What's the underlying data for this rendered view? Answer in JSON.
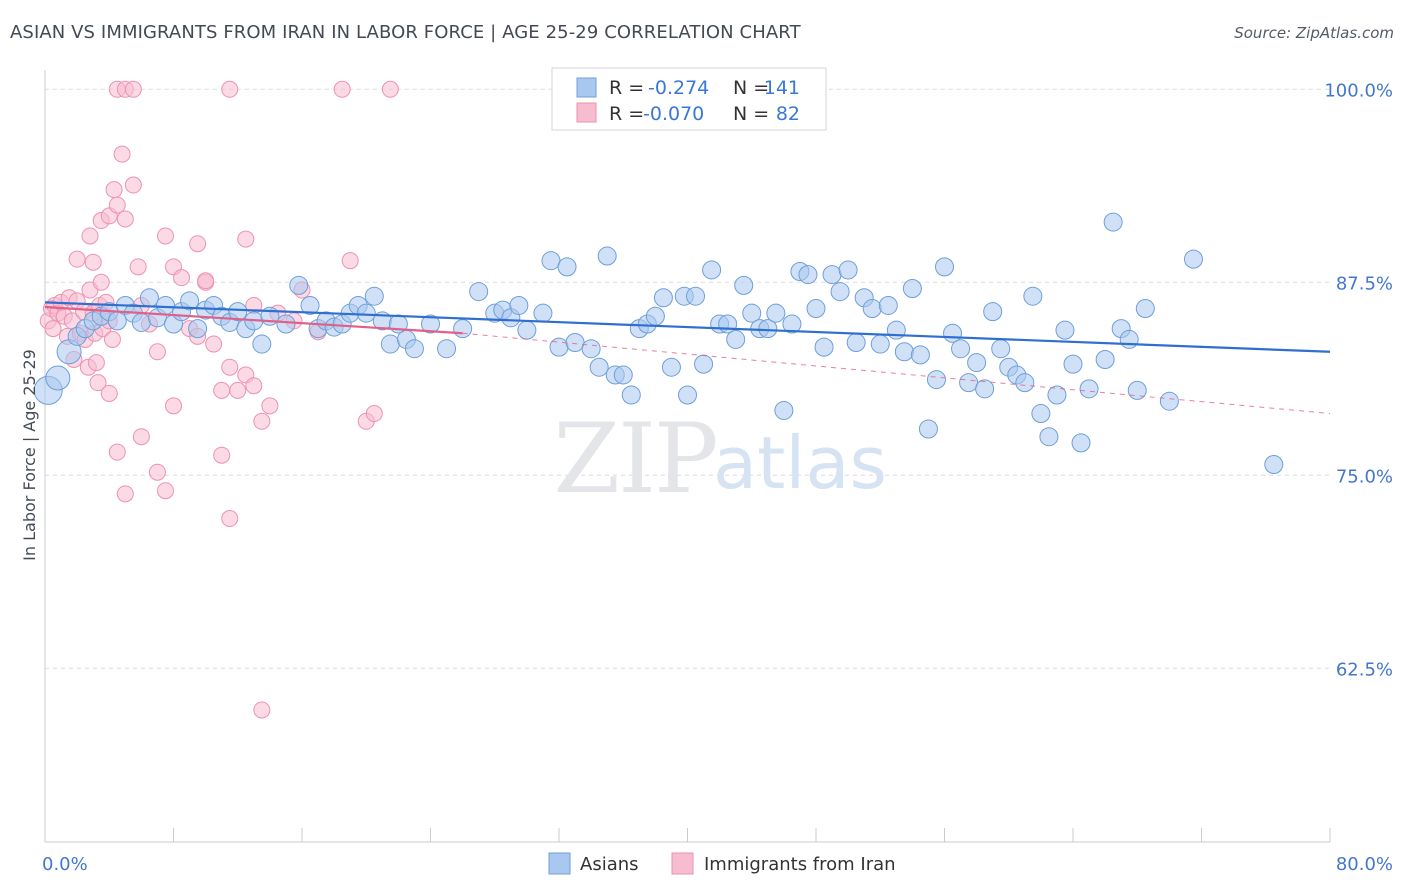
{
  "title": "ASIAN VS IMMIGRANTS FROM IRAN IN LABOR FORCE | AGE 25-29 CORRELATION CHART",
  "source": "Source: ZipAtlas.com",
  "watermark": {
    "zip": "ZIP",
    "atlas": "atlas"
  },
  "colors": {
    "asians_fill": "#a9c8f0",
    "asians_stroke": "#6e9fd8",
    "asians_line": "#2f6fd0",
    "iran_fill": "#f7bcd0",
    "iran_stroke": "#ee92b0",
    "iran_line": "#e0608a",
    "tick_label": "#4477cc",
    "grid": "#d8dce3"
  },
  "stats_box": {
    "rows": [
      {
        "r_label": "R =",
        "r_value": "-0.274",
        "n_label": "N =",
        "n_value": "141",
        "series": "asians"
      },
      {
        "r_label": "R =",
        "r_value": "-0.070",
        "n_label": "N =",
        "n_value": "82",
        "series": "iran"
      }
    ]
  },
  "chart_data": {
    "type": "scatter",
    "title": "ASIAN VS IMMIGRANTS FROM IRAN IN LABOR FORCE | AGE 25-29 CORRELATION CHART",
    "xlabel": "",
    "ylabel": "In Labor Force | Age 25-29",
    "xlim": [
      0,
      80
    ],
    "ylim": [
      51.25,
      101.25
    ],
    "x_tick_labels": [
      {
        "v": 0,
        "label": "0.0%"
      },
      {
        "v": 80,
        "label": "80.0%"
      }
    ],
    "y_tick_labels": [
      {
        "v": 100,
        "label": "100.0%"
      },
      {
        "v": 87.5,
        "label": "87.5%"
      },
      {
        "v": 75,
        "label": "75.0%"
      },
      {
        "v": 62.5,
        "label": "62.5%"
      }
    ],
    "grid": true,
    "legend_position": "bottom-center",
    "series": [
      {
        "name": "Asians",
        "trend": {
          "x": [
            0,
            80
          ],
          "y": [
            86.2,
            83.0
          ],
          "style": "solid"
        },
        "points": [
          [
            0.2,
            80.5
          ],
          [
            0.8,
            81.3
          ],
          [
            1.5,
            83.0
          ],
          [
            2.0,
            84.0
          ],
          [
            2.5,
            84.5
          ],
          [
            3.0,
            85.0
          ],
          [
            3.5,
            85.3
          ],
          [
            4.0,
            85.6
          ],
          [
            4.5,
            85.0
          ],
          [
            5.0,
            86.0
          ],
          [
            5.5,
            85.5
          ],
          [
            6.0,
            84.9
          ],
          [
            6.5,
            86.5
          ],
          [
            7.0,
            85.2
          ],
          [
            7.5,
            86.0
          ],
          [
            8.0,
            84.8
          ],
          [
            8.5,
            85.6
          ],
          [
            9.0,
            86.3
          ],
          [
            9.5,
            84.5
          ],
          [
            10.0,
            85.7
          ],
          [
            10.5,
            86.0
          ],
          [
            11.0,
            85.3
          ],
          [
            11.5,
            84.9
          ],
          [
            12.0,
            85.6
          ],
          [
            12.5,
            84.5
          ],
          [
            13.0,
            85.0
          ],
          [
            13.5,
            83.5
          ],
          [
            14.0,
            85.3
          ],
          [
            15.0,
            84.8
          ],
          [
            15.8,
            87.3
          ],
          [
            16.5,
            86.0
          ],
          [
            17.0,
            84.5
          ],
          [
            17.5,
            85.0
          ],
          [
            18.0,
            84.6
          ],
          [
            18.5,
            84.8
          ],
          [
            19.0,
            85.5
          ],
          [
            19.5,
            86.0
          ],
          [
            20.0,
            85.5
          ],
          [
            20.5,
            86.6
          ],
          [
            21.0,
            85.0
          ],
          [
            21.5,
            83.5
          ],
          [
            22.0,
            84.8
          ],
          [
            22.5,
            83.8
          ],
          [
            23.0,
            83.2
          ],
          [
            24.0,
            84.8
          ],
          [
            25.0,
            83.2
          ],
          [
            26.0,
            84.5
          ],
          [
            27.0,
            86.9
          ],
          [
            28.0,
            85.5
          ],
          [
            28.5,
            85.7
          ],
          [
            29.0,
            85.2
          ],
          [
            29.5,
            86.0
          ],
          [
            30.0,
            84.4
          ],
          [
            31.0,
            85.5
          ],
          [
            31.5,
            88.9
          ],
          [
            32.0,
            83.3
          ],
          [
            32.5,
            88.5
          ],
          [
            33.0,
            83.6
          ],
          [
            34.0,
            83.2
          ],
          [
            34.5,
            82.0
          ],
          [
            35.0,
            89.2
          ],
          [
            35.5,
            81.5
          ],
          [
            36.0,
            81.5
          ],
          [
            36.5,
            80.2
          ],
          [
            37.0,
            84.5
          ],
          [
            37.5,
            84.8
          ],
          [
            38.0,
            85.3
          ],
          [
            38.5,
            86.5
          ],
          [
            39.0,
            82.0
          ],
          [
            39.8,
            86.6
          ],
          [
            40.0,
            80.2
          ],
          [
            40.5,
            86.6
          ],
          [
            41.0,
            82.2
          ],
          [
            41.5,
            88.3
          ],
          [
            42.0,
            84.8
          ],
          [
            42.5,
            84.8
          ],
          [
            43.0,
            83.8
          ],
          [
            43.5,
            87.3
          ],
          [
            44.0,
            85.5
          ],
          [
            44.5,
            84.5
          ],
          [
            45.0,
            84.5
          ],
          [
            45.5,
            85.5
          ],
          [
            46.0,
            79.2
          ],
          [
            46.5,
            84.8
          ],
          [
            47.0,
            88.2
          ],
          [
            47.5,
            88.0
          ],
          [
            48.0,
            85.8
          ],
          [
            48.5,
            83.3
          ],
          [
            49.0,
            88.0
          ],
          [
            49.5,
            86.9
          ],
          [
            50.0,
            88.3
          ],
          [
            50.5,
            83.6
          ],
          [
            51.0,
            86.5
          ],
          [
            51.5,
            85.8
          ],
          [
            52.0,
            83.5
          ],
          [
            52.5,
            86.0
          ],
          [
            53.0,
            84.4
          ],
          [
            53.5,
            83.0
          ],
          [
            54.0,
            87.1
          ],
          [
            54.5,
            82.8
          ],
          [
            55.0,
            78.0
          ],
          [
            55.5,
            81.2
          ],
          [
            56.0,
            88.5
          ],
          [
            56.5,
            84.2
          ],
          [
            57.0,
            83.2
          ],
          [
            57.5,
            81.0
          ],
          [
            58.0,
            82.3
          ],
          [
            58.5,
            80.6
          ],
          [
            59.0,
            85.6
          ],
          [
            59.5,
            83.2
          ],
          [
            60.0,
            82.0
          ],
          [
            60.5,
            81.5
          ],
          [
            61.0,
            81.0
          ],
          [
            61.5,
            86.6
          ],
          [
            62.0,
            79.0
          ],
          [
            62.5,
            77.5
          ],
          [
            63.0,
            80.2
          ],
          [
            63.5,
            84.4
          ],
          [
            64.0,
            82.2
          ],
          [
            64.5,
            77.1
          ],
          [
            65.0,
            80.6
          ],
          [
            66.0,
            82.5
          ],
          [
            66.5,
            91.4
          ],
          [
            67.0,
            84.5
          ],
          [
            67.5,
            83.8
          ],
          [
            68.0,
            80.5
          ],
          [
            68.5,
            85.8
          ],
          [
            70.0,
            79.8
          ],
          [
            71.5,
            89.0
          ],
          [
            76.5,
            75.7
          ]
        ]
      },
      {
        "name": "Immigrants from Iran",
        "trend": {
          "x": [
            0,
            26
          ],
          "y": [
            85.9,
            84.2
          ],
          "style": "solid",
          "dashed_extension": {
            "x": [
              26,
              80
            ],
            "y": [
              84.2,
              79.0
            ]
          }
        },
        "points": [
          [
            0.2,
            85.0
          ],
          [
            0.4,
            85.8
          ],
          [
            0.5,
            84.5
          ],
          [
            0.6,
            86.0
          ],
          [
            0.8,
            85.5
          ],
          [
            1.0,
            86.2
          ],
          [
            1.2,
            85.3
          ],
          [
            1.4,
            84.0
          ],
          [
            1.5,
            86.5
          ],
          [
            1.7,
            85.0
          ],
          [
            1.8,
            82.5
          ],
          [
            2.0,
            86.3
          ],
          [
            2.2,
            84.2
          ],
          [
            2.4,
            85.6
          ],
          [
            2.5,
            83.8
          ],
          [
            2.7,
            82.0
          ],
          [
            2.8,
            87.0
          ],
          [
            3.0,
            85.5
          ],
          [
            3.1,
            84.2
          ],
          [
            3.2,
            82.3
          ],
          [
            3.3,
            81.0
          ],
          [
            3.4,
            86.0
          ],
          [
            3.5,
            87.5
          ],
          [
            3.6,
            84.5
          ],
          [
            3.8,
            86.2
          ],
          [
            4.0,
            85.0
          ],
          [
            4.2,
            83.8
          ],
          [
            2.0,
            89.0
          ],
          [
            2.8,
            90.5
          ],
          [
            3.0,
            88.8
          ],
          [
            3.5,
            91.5
          ],
          [
            4.0,
            91.8
          ],
          [
            4.3,
            93.5
          ],
          [
            4.5,
            92.5
          ],
          [
            4.8,
            95.8
          ],
          [
            5.0,
            91.6
          ],
          [
            5.5,
            93.8
          ],
          [
            5.8,
            88.5
          ],
          [
            6.0,
            86.0
          ],
          [
            6.5,
            84.8
          ],
          [
            7.0,
            83.0
          ],
          [
            7.5,
            90.5
          ],
          [
            8.0,
            88.5
          ],
          [
            8.5,
            87.8
          ],
          [
            9.0,
            84.5
          ],
          [
            9.5,
            84.0
          ],
          [
            10.0,
            87.5
          ],
          [
            10.5,
            83.5
          ],
          [
            11.0,
            80.5
          ],
          [
            11.5,
            82.0
          ],
          [
            12.0,
            80.5
          ],
          [
            12.5,
            81.5
          ],
          [
            13.0,
            80.8
          ],
          [
            13.5,
            78.5
          ],
          [
            14.0,
            79.5
          ],
          [
            4.0,
            80.3
          ],
          [
            4.5,
            76.5
          ],
          [
            5.0,
            73.8
          ],
          [
            6.0,
            77.5
          ],
          [
            7.0,
            75.2
          ],
          [
            7.5,
            74.0
          ],
          [
            8.0,
            79.5
          ],
          [
            11.0,
            76.3
          ],
          [
            11.5,
            72.2
          ],
          [
            9.5,
            90.0
          ],
          [
            10.0,
            87.6
          ],
          [
            12.5,
            90.3
          ],
          [
            13.0,
            86.0
          ],
          [
            14.5,
            85.5
          ],
          [
            16.0,
            87.0
          ],
          [
            17.0,
            84.3
          ],
          [
            19.0,
            88.9
          ],
          [
            20.0,
            78.5
          ],
          [
            20.5,
            79.0
          ],
          [
            4.5,
            100
          ],
          [
            5.0,
            100
          ],
          [
            5.5,
            100
          ],
          [
            11.5,
            100
          ],
          [
            18.5,
            100
          ],
          [
            21.5,
            100
          ],
          [
            13.5,
            59.8
          ],
          [
            15.5,
            85.0
          ]
        ]
      }
    ]
  },
  "legend": {
    "items": [
      {
        "label": "Asians",
        "series": "asians"
      },
      {
        "label": "Immigrants from Iran",
        "series": "iran"
      }
    ]
  }
}
